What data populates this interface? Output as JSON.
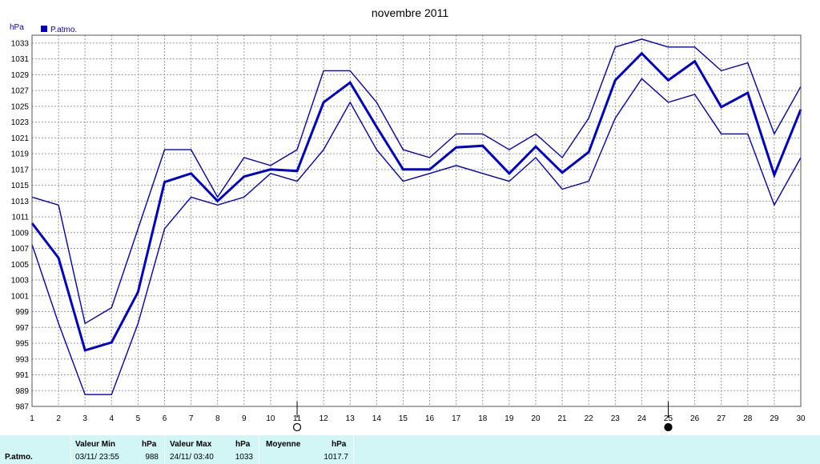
{
  "chart_data": {
    "type": "line",
    "title": "novembre 2011",
    "ylabel": "hPa",
    "xlabel": "",
    "legend": {
      "label": "P.atmo.",
      "color": "#0000cc",
      "placement": "top-left"
    },
    "x": [
      1,
      2,
      3,
      4,
      5,
      6,
      7,
      8,
      9,
      10,
      11,
      12,
      13,
      14,
      15,
      16,
      17,
      18,
      19,
      20,
      21,
      22,
      23,
      24,
      25,
      26,
      27,
      28,
      29,
      30
    ],
    "ylim": [
      987,
      1034
    ],
    "yticks": [
      987,
      989,
      991,
      993,
      995,
      997,
      999,
      1001,
      1003,
      1005,
      1007,
      1009,
      1011,
      1013,
      1015,
      1017,
      1019,
      1021,
      1023,
      1025,
      1027,
      1029,
      1031,
      1033
    ],
    "grid": true,
    "series": [
      {
        "role": "max",
        "color": "#0000cc",
        "values": [
          1013.5,
          1012.5,
          997.5,
          999.5,
          1009.5,
          1019.5,
          1019.5,
          1013.5,
          1018.5,
          1017.5,
          1019.5,
          1029.5,
          1029.5,
          1025.5,
          1019.5,
          1018.5,
          1021.5,
          1021.5,
          1019.5,
          1021.5,
          1018.5,
          1023.5,
          1032.5,
          1033.5,
          1032.5,
          1032.5,
          1029.5,
          1030.5,
          1021.5,
          1027.5
        ]
      },
      {
        "role": "mean",
        "color": "#0000cc",
        "values": [
          1010.2,
          1005.8,
          994.1,
          995.1,
          1001.5,
          1015.4,
          1016.5,
          1013.0,
          1016.1,
          1017.0,
          1016.8,
          1025.5,
          1028.0,
          1022.4,
          1017.0,
          1017.0,
          1019.8,
          1020.0,
          1016.5,
          1019.9,
          1016.6,
          1019.2,
          1028.3,
          1031.7,
          1028.3,
          1030.7,
          1024.9,
          1026.7,
          1016.3,
          1024.6
        ]
      },
      {
        "role": "min",
        "color": "#0000cc",
        "values": [
          1007.5,
          997.5,
          988.5,
          988.5,
          997.5,
          1009.5,
          1013.5,
          1012.5,
          1013.5,
          1016.5,
          1015.5,
          1019.5,
          1025.5,
          1019.5,
          1015.5,
          1016.5,
          1017.5,
          1016.5,
          1015.5,
          1018.5,
          1014.5,
          1015.5,
          1023.5,
          1028.5,
          1025.5,
          1026.5,
          1021.5,
          1021.5,
          1012.5,
          1018.5
        ]
      }
    ],
    "moon_phases": [
      {
        "day": 11,
        "phase": "full",
        "icon": "full-moon-icon"
      },
      {
        "day": 25,
        "phase": "new",
        "icon": "new-moon-icon"
      }
    ]
  },
  "footer": {
    "row_label": "P.atmo.",
    "min_header": "Valeur Min",
    "min_unit": "hPa",
    "min_time": "03/11/  23:55",
    "min_value": "988",
    "max_header": "Valeur Max",
    "max_unit": "hPa",
    "max_time": "24/11/  03:40",
    "max_value": "1033",
    "mean_header": "Moyenne",
    "mean_unit": "hPa",
    "mean_value": "1017.7",
    "background": "#d2f5f5"
  }
}
